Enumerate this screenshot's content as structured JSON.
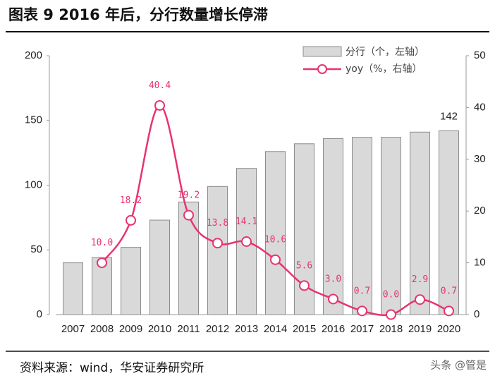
{
  "chart_data": {
    "type": "bar-line",
    "title": "图表 9 2016 年后，分行数量增长停滞",
    "source": "资料来源：wind，华安证券研究所",
    "watermark": "头条 @管是",
    "categories": [
      "2007",
      "2008",
      "2009",
      "2010",
      "2011",
      "2012",
      "2013",
      "2014",
      "2015",
      "2016",
      "2017",
      "2018",
      "2019",
      "2020"
    ],
    "series": [
      {
        "name": "分行（个，左轴）",
        "color": "#d9d9d9",
        "type": "bar",
        "values": [
          40,
          44,
          52,
          73,
          87,
          99,
          113,
          126,
          132,
          136,
          137,
          137,
          141,
          142
        ],
        "value_labels": [
          null,
          null,
          null,
          null,
          null,
          null,
          null,
          null,
          null,
          null,
          null,
          null,
          null,
          "142"
        ]
      },
      {
        "name": "yoy（%，右轴）",
        "color": "#e8336d",
        "type": "line",
        "axis": "y2",
        "values": [
          null,
          10.0,
          18.2,
          40.4,
          19.2,
          13.8,
          14.1,
          10.6,
          5.6,
          3.0,
          0.7,
          0.0,
          2.9,
          0.7
        ],
        "value_labels": [
          null,
          "10.0",
          "18.2",
          "40.4",
          "19.2",
          "13.8",
          "14.1",
          "10.6",
          "5.6",
          "3.0",
          "0.7",
          "0.0",
          "2.9",
          "0.7"
        ]
      }
    ],
    "ylim": [
      0,
      200
    ],
    "yticks": [
      0,
      50,
      100,
      150,
      200
    ],
    "y2lim": [
      0,
      50
    ],
    "y2ticks": [
      0,
      10,
      20,
      30,
      40,
      50
    ]
  }
}
